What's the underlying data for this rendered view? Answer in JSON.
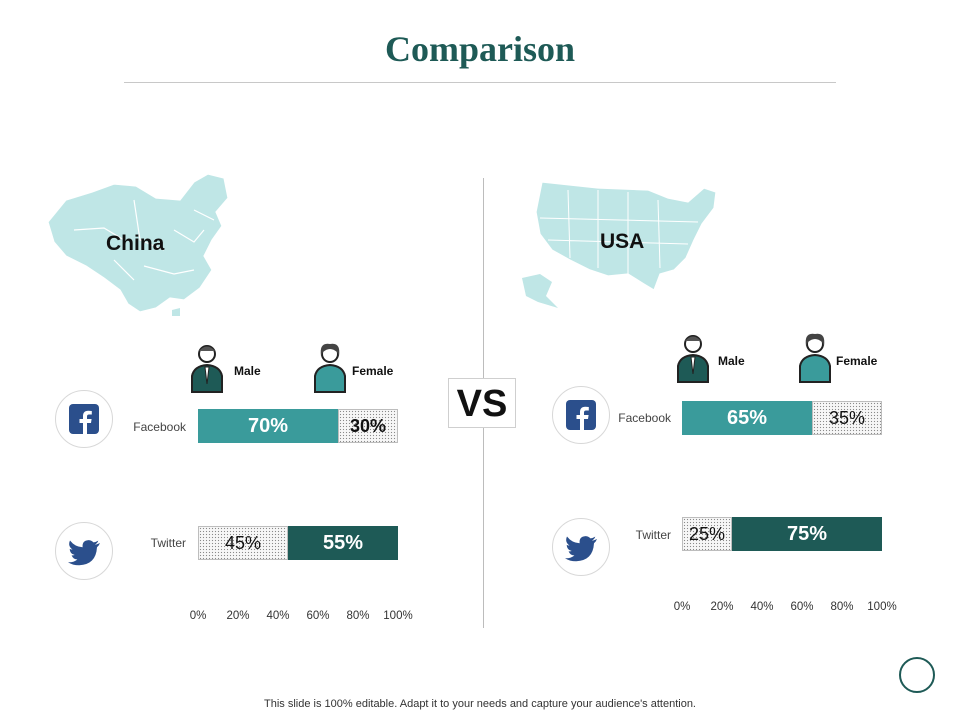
{
  "title": "Comparison",
  "vs_label": "VS",
  "footer": "This slide is 100% editable. Adapt it to your needs and capture your audience's attention.",
  "gender_labels": {
    "male": "Male",
    "female": "Female"
  },
  "platforms": {
    "facebook": "Facebook",
    "twitter": "Twitter"
  },
  "colors": {
    "title": "#1e5a56",
    "dark_teal": "#1e5a56",
    "teal": "#3a9b9b",
    "map": "#bfe6e6",
    "facebook": "#2b4f8c",
    "twitter": "#2b4f8c"
  },
  "chart_data": [
    {
      "type": "bar",
      "orientation": "horizontal",
      "stacked": true,
      "title": "China",
      "categories": [
        "Facebook",
        "Twitter"
      ],
      "series": [
        {
          "name": "Male",
          "values": [
            70,
            45
          ],
          "labels": [
            "70%",
            "45%"
          ]
        },
        {
          "name": "Female",
          "values": [
            30,
            55
          ],
          "labels": [
            "30%",
            "55%"
          ]
        }
      ],
      "xlim": [
        0,
        100
      ],
      "x_ticks": [
        "0%",
        "20%",
        "40%",
        "60%",
        "80%",
        "100%"
      ],
      "legend": "top"
    },
    {
      "type": "bar",
      "orientation": "horizontal",
      "stacked": true,
      "title": "USA",
      "categories": [
        "Facebook",
        "Twitter"
      ],
      "series": [
        {
          "name": "Male",
          "values": [
            65,
            25
          ],
          "labels": [
            "65%",
            "25%"
          ]
        },
        {
          "name": "Female",
          "values": [
            35,
            75
          ],
          "labels": [
            "35%",
            "75%"
          ]
        }
      ],
      "xlim": [
        0,
        100
      ],
      "x_ticks": [
        "0%",
        "20%",
        "40%",
        "60%",
        "80%",
        "100%"
      ],
      "legend": "top"
    }
  ]
}
